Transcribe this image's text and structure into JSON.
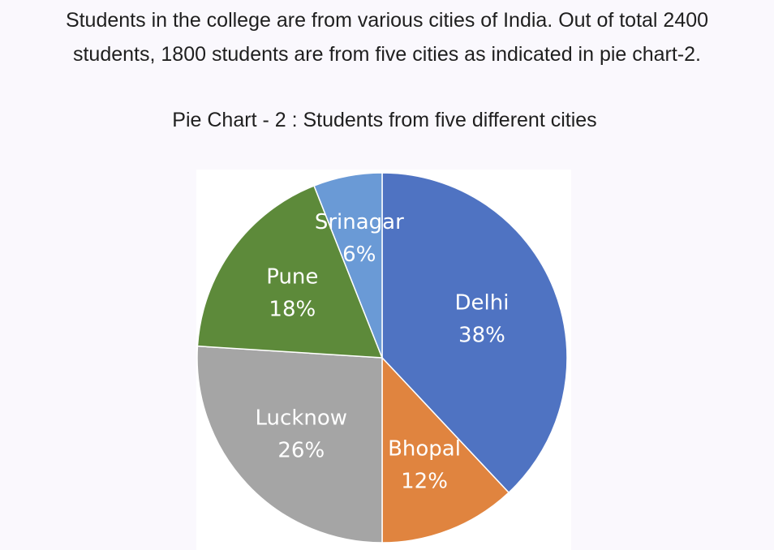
{
  "intro": {
    "line1": "Students in the college are from various cities of India. Out of total 2400",
    "line2": "students, 1800 students are from five cities as indicated in pie chart-2."
  },
  "chart_data": {
    "type": "pie",
    "title": "Pie Chart - 2 : Students from five different cities",
    "categories": [
      "Delhi",
      "Bhopal",
      "Lucknow",
      "Pune",
      "Srinagar"
    ],
    "values": [
      38,
      12,
      26,
      18,
      6
    ],
    "labels": [
      "38%",
      "12%",
      "26%",
      "18%",
      "6%"
    ],
    "colors": [
      "#4f73c2",
      "#e0843f",
      "#a5a5a5",
      "#5d8a3a",
      "#6a9ad6"
    ],
    "start": "12 o'clock",
    "direction": "clockwise"
  }
}
